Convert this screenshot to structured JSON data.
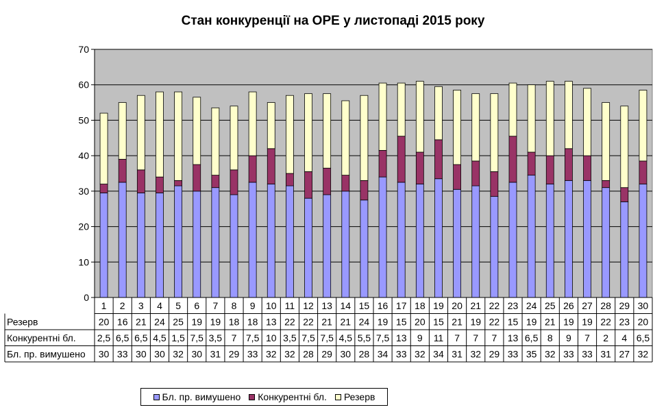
{
  "chart_data": {
    "type": "bar",
    "stacked": true,
    "title": "Стан конкуренції на ОРЕ  у листопаді 2015 року",
    "xlabel": "",
    "ylabel": "",
    "ylim": [
      0,
      70
    ],
    "yticks": [
      "0",
      "10",
      "20",
      "30",
      "40",
      "50",
      "60",
      "70"
    ],
    "grid": true,
    "legend_position": "bottom",
    "categories": [
      "1",
      "2",
      "3",
      "4",
      "5",
      "6",
      "7",
      "8",
      "9",
      "10",
      "11",
      "12",
      "13",
      "14",
      "15",
      "16",
      "17",
      "18",
      "19",
      "20",
      "21",
      "22",
      "23",
      "24",
      "25",
      "26",
      "27",
      "28",
      "29",
      "30"
    ],
    "series": [
      {
        "name": "Бл. пр. вимушено",
        "color": "#9999ff",
        "values": [
          29.5,
          32.5,
          29.5,
          29.5,
          31.5,
          30,
          31,
          29,
          32.5,
          32,
          31.5,
          28,
          29,
          30,
          27.5,
          34,
          32.5,
          32,
          33.5,
          30.5,
          31.5,
          28.5,
          32.5,
          34.5,
          32,
          33,
          33,
          31,
          27,
          32
        ],
        "table_values": [
          "30",
          "33",
          "30",
          "30",
          "32",
          "30",
          "31",
          "29",
          "33",
          "32",
          "32",
          "28",
          "29",
          "30",
          "28",
          "34",
          "33",
          "32",
          "34",
          "31",
          "32",
          "29",
          "33",
          "35",
          "32",
          "33",
          "33",
          "31",
          "27",
          "32"
        ]
      },
      {
        "name": "Конкурентні бл.",
        "color": "#993366",
        "values": [
          2.5,
          6.5,
          6.5,
          4.5,
          1.5,
          7.5,
          3.5,
          7,
          7.5,
          10,
          3.5,
          7.5,
          7.5,
          4.5,
          5.5,
          7.5,
          13,
          9,
          11,
          7,
          7,
          7,
          13,
          6.5,
          8,
          9,
          7,
          2,
          4,
          6.5
        ],
        "table_values": [
          "2,5",
          "6,5",
          "6,5",
          "4,5",
          "1,5",
          "7,5",
          "3,5",
          "7",
          "7,5",
          "10",
          "3,5",
          "7,5",
          "7,5",
          "4,5",
          "5,5",
          "7,5",
          "13",
          "9",
          "11",
          "7",
          "7",
          "7",
          "13",
          "6,5",
          "8",
          "9",
          "7",
          "2",
          "4",
          "6,5"
        ]
      },
      {
        "name": "Резерв",
        "color": "#ffffcc",
        "values": [
          20,
          16,
          21,
          24,
          25,
          19,
          19,
          18,
          18,
          13,
          22,
          22,
          21,
          21,
          24,
          19,
          15,
          20,
          15,
          21,
          19,
          22,
          15,
          19,
          21,
          19,
          19,
          22,
          23,
          20
        ],
        "table_values": [
          "20",
          "16",
          "21",
          "24",
          "25",
          "19",
          "19",
          "18",
          "18",
          "13",
          "22",
          "22",
          "21",
          "21",
          "24",
          "19",
          "15",
          "20",
          "15",
          "21",
          "19",
          "22",
          "15",
          "19",
          "21",
          "19",
          "19",
          "22",
          "23",
          "20"
        ]
      }
    ],
    "table_row_order": [
      "Резерв",
      "Конкурентні бл.",
      "Бл. пр. вимушено"
    ],
    "legend_order": [
      "Бл. пр. вимушено",
      "Конкурентні бл.",
      "Резерв"
    ],
    "colors": {
      "plot_bg": "#c0c0c0",
      "grid": "#000000",
      "axis": "#000000"
    }
  }
}
